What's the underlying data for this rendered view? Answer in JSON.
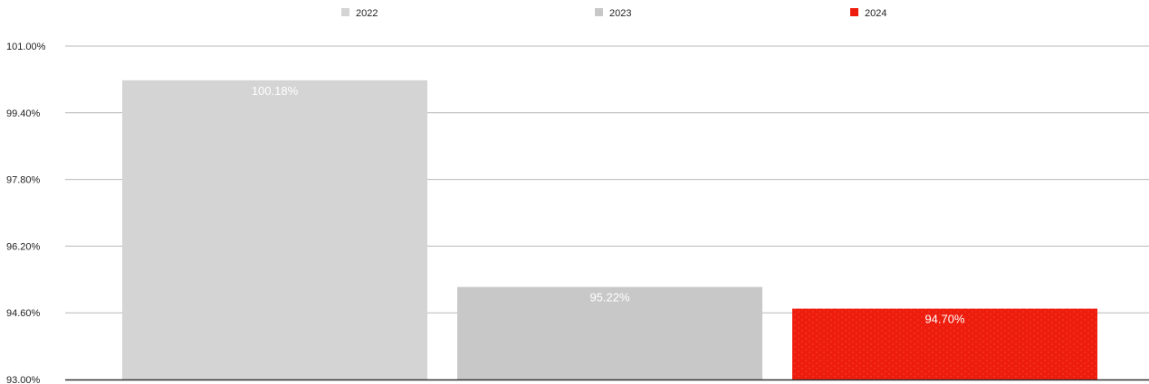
{
  "chart_data": {
    "type": "bar",
    "title": "",
    "xlabel": "",
    "ylabel": "",
    "categories": [
      "2022",
      "2023",
      "2024"
    ],
    "values": [
      100.18,
      95.22,
      94.7
    ],
    "data_labels": [
      "100.18%",
      "95.22%",
      "94.70%"
    ],
    "colors": [
      "#d4d4d4",
      "#c8c8c8",
      "#ee1c0c"
    ],
    "ylim": [
      93.0,
      101.0
    ],
    "yticks": [
      93.0,
      94.6,
      96.2,
      97.8,
      99.4,
      101.0
    ],
    "ytick_labels": [
      "93.00%",
      "94.60%",
      "96.20%",
      "97.80%",
      "99.40%",
      "101.00%"
    ],
    "grid": true,
    "legend_position": "top",
    "legend": [
      {
        "label": "2022",
        "color": "#d4d4d4"
      },
      {
        "label": "2023",
        "color": "#c8c8c8"
      },
      {
        "label": "2024",
        "color": "#ee1c0c"
      }
    ]
  }
}
